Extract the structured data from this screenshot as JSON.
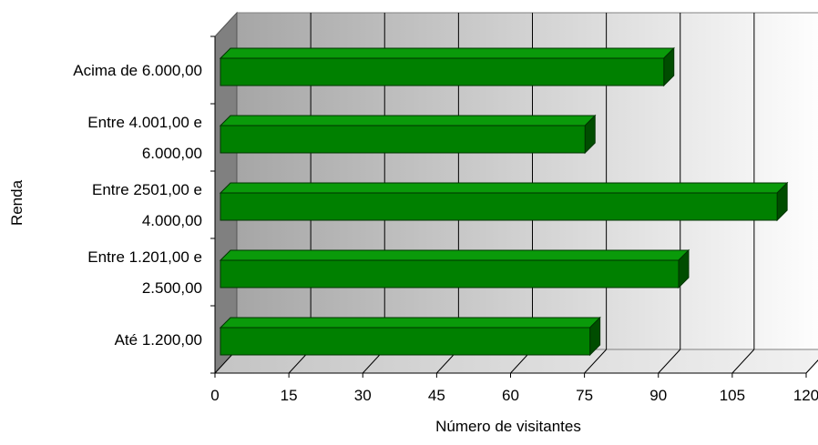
{
  "chart_data": {
    "type": "bar",
    "orientation": "horizontal",
    "three_d": true,
    "categories": [
      [
        "Até 1.200,00"
      ],
      [
        "Entre 1.201,00 e",
        "2.500,00"
      ],
      [
        "Entre 2501,00 e",
        "4.000,00"
      ],
      [
        "Entre 4.001,00 e",
        "6.000,00"
      ],
      [
        "Acima de 6.000,00"
      ]
    ],
    "values": [
      75,
      93,
      113,
      74,
      90
    ],
    "xlabel": "Número de visitantes",
    "ylabel": "Renda",
    "xlim": [
      0,
      120
    ],
    "xticks": [
      "0",
      "15",
      "30",
      "45",
      "60",
      "75",
      "90",
      "105",
      "120"
    ],
    "grid": "vertical",
    "legend": "none",
    "colors": {
      "bar_front": "#008000",
      "bar_top": "#0a9a0a",
      "bar_side": "#004d00",
      "bar_outline": "#003300",
      "wall_left": "#808080",
      "floor": "#d6d6d6",
      "gridline": "#000000"
    }
  }
}
